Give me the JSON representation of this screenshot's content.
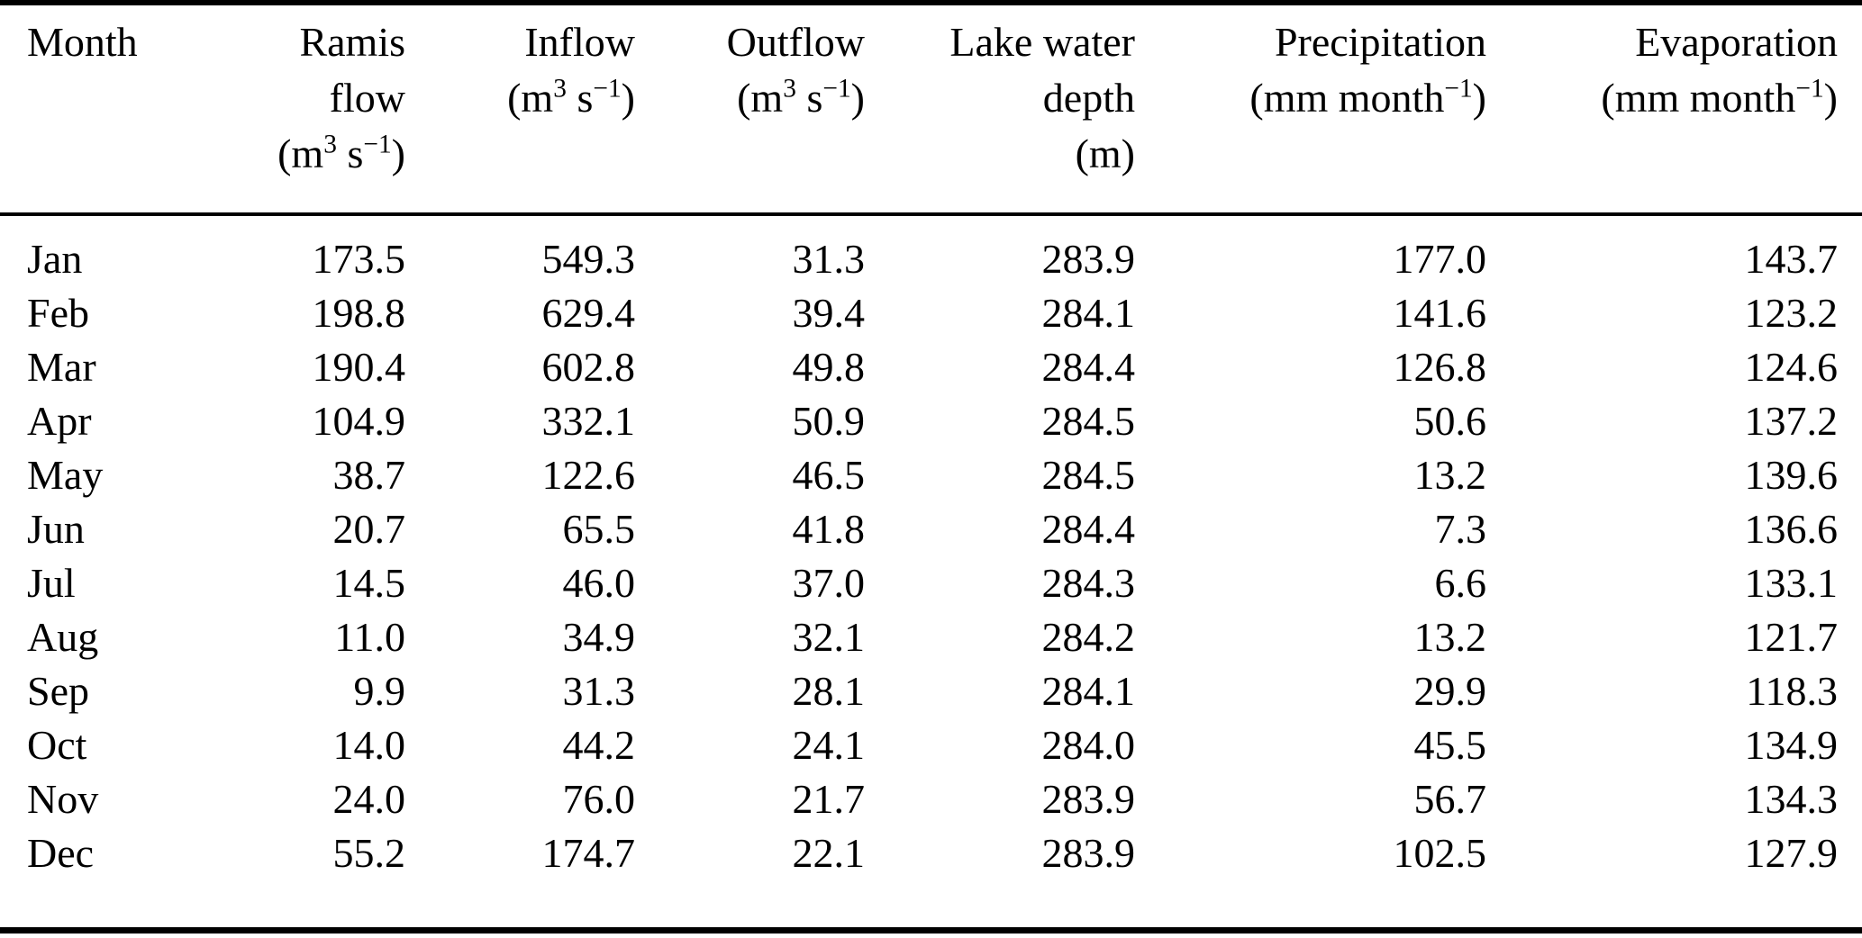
{
  "table": {
    "headers": {
      "month": {
        "line1": "Month"
      },
      "ramis": {
        "line1": "Ramis",
        "line2": "flow",
        "unit": [
          {
            "t": "(m"
          },
          {
            "t": "3",
            "sup": true
          },
          {
            "t": " s"
          },
          {
            "t": "−1",
            "sup": true
          },
          {
            "t": ")"
          }
        ]
      },
      "inflow": {
        "line1": "Inflow",
        "unit": [
          {
            "t": "(m"
          },
          {
            "t": "3",
            "sup": true
          },
          {
            "t": " s"
          },
          {
            "t": "−1",
            "sup": true
          },
          {
            "t": ")"
          }
        ]
      },
      "outflow": {
        "line1": "Outflow",
        "unit": [
          {
            "t": "(m"
          },
          {
            "t": "3",
            "sup": true
          },
          {
            "t": " s"
          },
          {
            "t": "−1",
            "sup": true
          },
          {
            "t": ")"
          }
        ]
      },
      "depth": {
        "line1": "Lake water",
        "line2": "depth",
        "unit": [
          {
            "t": "(m)"
          }
        ]
      },
      "precip": {
        "line1": "Precipitation",
        "unit": [
          {
            "t": "(mm month"
          },
          {
            "t": "−1",
            "sup": true
          },
          {
            "t": ")"
          }
        ]
      },
      "evap": {
        "line1": "Evaporation",
        "unit": [
          {
            "t": "(mm month"
          },
          {
            "t": "−1",
            "sup": true
          },
          {
            "t": ")"
          }
        ]
      }
    },
    "rows": [
      {
        "month": "Jan",
        "ramis": "173.5",
        "inflow": "549.3",
        "outflow": "31.3",
        "depth": "283.9",
        "precip": "177.0",
        "evap": "143.7"
      },
      {
        "month": "Feb",
        "ramis": "198.8",
        "inflow": "629.4",
        "outflow": "39.4",
        "depth": "284.1",
        "precip": "141.6",
        "evap": "123.2"
      },
      {
        "month": "Mar",
        "ramis": "190.4",
        "inflow": "602.8",
        "outflow": "49.8",
        "depth": "284.4",
        "precip": "126.8",
        "evap": "124.6"
      },
      {
        "month": "Apr",
        "ramis": "104.9",
        "inflow": "332.1",
        "outflow": "50.9",
        "depth": "284.5",
        "precip": "50.6",
        "evap": "137.2"
      },
      {
        "month": "May",
        "ramis": "38.7",
        "inflow": "122.6",
        "outflow": "46.5",
        "depth": "284.5",
        "precip": "13.2",
        "evap": "139.6"
      },
      {
        "month": "Jun",
        "ramis": "20.7",
        "inflow": "65.5",
        "outflow": "41.8",
        "depth": "284.4",
        "precip": "7.3",
        "evap": "136.6"
      },
      {
        "month": "Jul",
        "ramis": "14.5",
        "inflow": "46.0",
        "outflow": "37.0",
        "depth": "284.3",
        "precip": "6.6",
        "evap": "133.1"
      },
      {
        "month": "Aug",
        "ramis": "11.0",
        "inflow": "34.9",
        "outflow": "32.1",
        "depth": "284.2",
        "precip": "13.2",
        "evap": "121.7"
      },
      {
        "month": "Sep",
        "ramis": "9.9",
        "inflow": "31.3",
        "outflow": "28.1",
        "depth": "284.1",
        "precip": "29.9",
        "evap": "118.3"
      },
      {
        "month": "Oct",
        "ramis": "14.0",
        "inflow": "44.2",
        "outflow": "24.1",
        "depth": "284.0",
        "precip": "45.5",
        "evap": "134.9"
      },
      {
        "month": "Nov",
        "ramis": "24.0",
        "inflow": "76.0",
        "outflow": "21.7",
        "depth": "283.9",
        "precip": "56.7",
        "evap": "134.3"
      },
      {
        "month": "Dec",
        "ramis": "55.2",
        "inflow": "174.7",
        "outflow": "22.1",
        "depth": "283.9",
        "precip": "102.5",
        "evap": "127.9"
      }
    ]
  }
}
